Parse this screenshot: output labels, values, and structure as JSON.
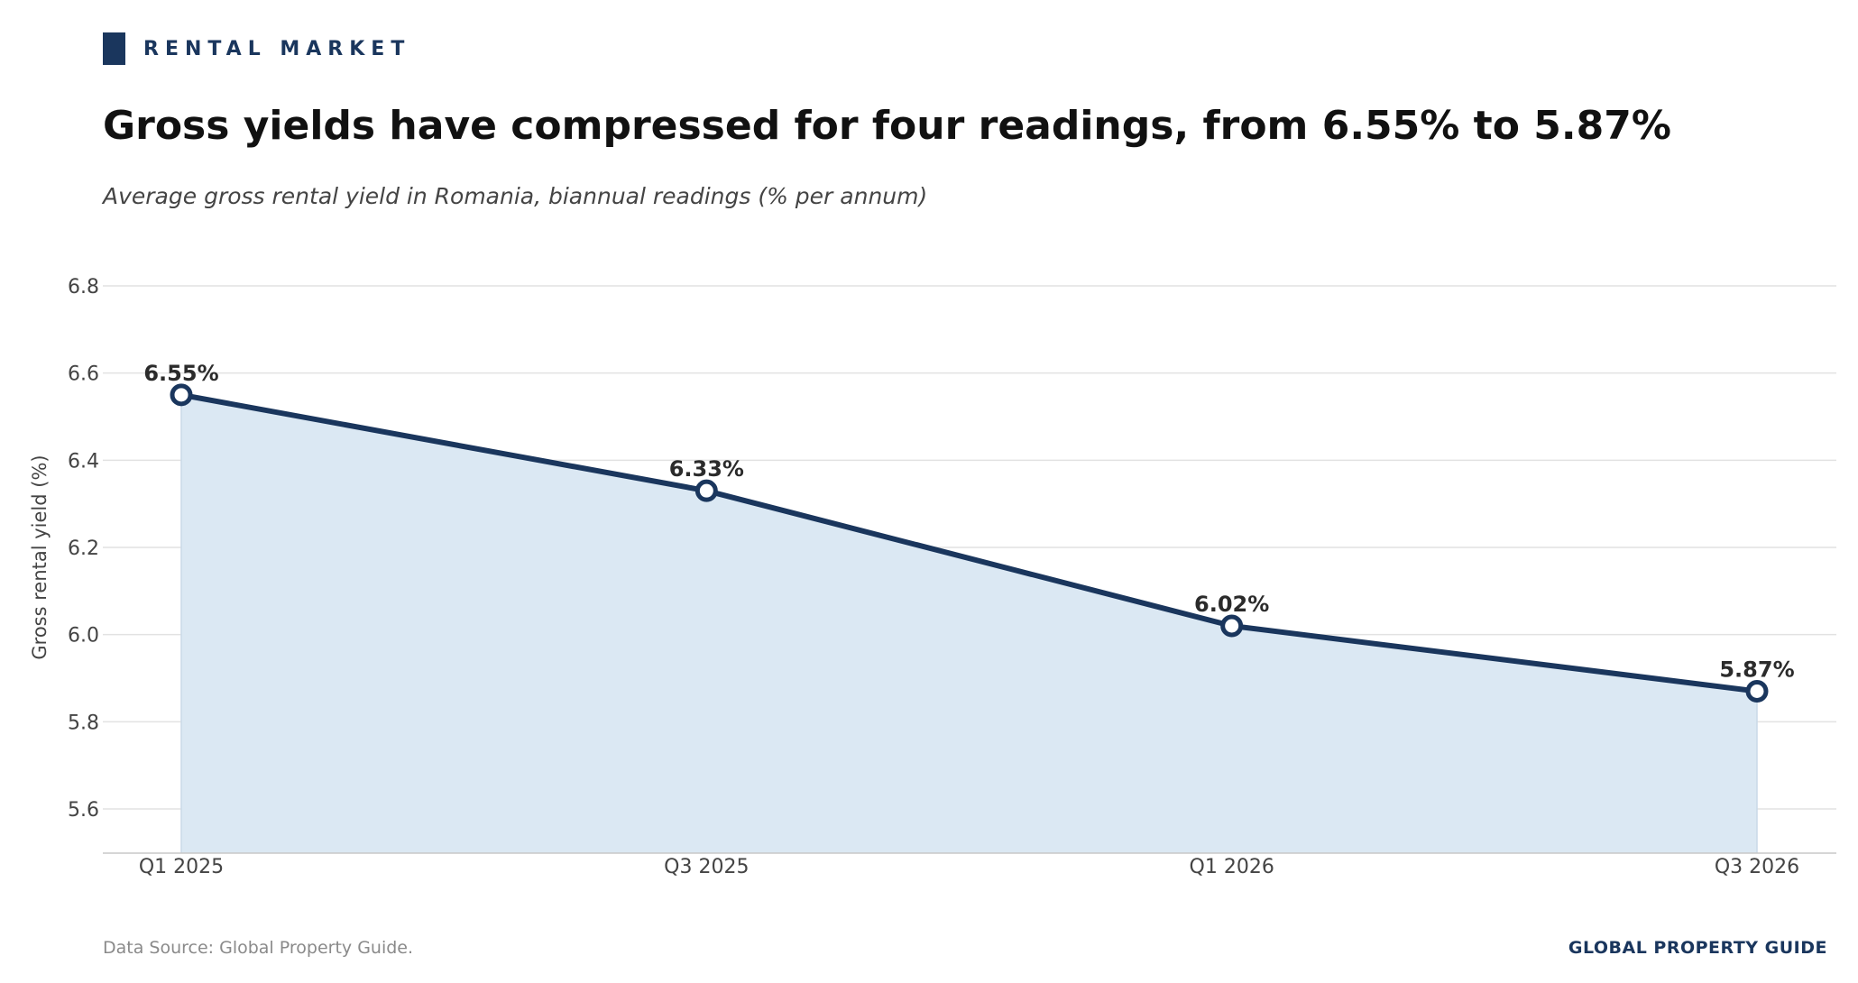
{
  "header": {
    "kicker": "RENTAL MARKET",
    "title": "Gross yields have compressed for four readings, from 6.55% to 5.87%",
    "subtitle": "Average gross rental yield in Romania, biannual readings (% per annum)"
  },
  "footer": {
    "source": "Data Source: Global Property Guide.",
    "brand": "GLOBAL PROPERTY GUIDE"
  },
  "colors": {
    "accent": "#1a365d",
    "area_fill": "#dbe8f3",
    "grid": "#e2e2e2"
  },
  "chart_data": {
    "type": "area",
    "categories": [
      "Q1 2025",
      "Q3 2025",
      "Q1 2026",
      "Q3 2026"
    ],
    "values": [
      6.55,
      6.33,
      6.02,
      5.87
    ],
    "data_labels": [
      "6.55%",
      "6.33%",
      "6.02%",
      "5.87%"
    ],
    "ylabel": "Gross rental yield (%)",
    "xlabel": "",
    "ylim": [
      5.5,
      6.8
    ],
    "yticks": [
      5.6,
      5.8,
      6.0,
      6.2,
      6.4,
      6.6,
      6.8
    ],
    "ytick_labels": [
      "5.6",
      "5.8",
      "6.0",
      "6.2",
      "6.4",
      "6.6",
      "6.8"
    ],
    "grid": "horizontal",
    "legend": "none"
  }
}
